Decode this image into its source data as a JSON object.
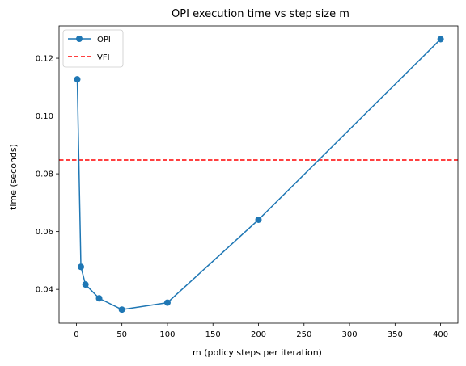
{
  "chart_data": {
    "type": "line",
    "title": "OPI execution time vs step size m",
    "xlabel": "m (policy steps per iteration)",
    "ylabel": "time (seconds)",
    "xlim": [
      -19,
      419
    ],
    "ylim": [
      0.0283,
      0.1312
    ],
    "xticks": [
      0,
      50,
      100,
      150,
      200,
      250,
      300,
      350,
      400
    ],
    "yticks": [
      0.04,
      0.06,
      0.08,
      0.1,
      0.12
    ],
    "ytick_labels": [
      "0.04",
      "0.06",
      "0.08",
      "0.10",
      "0.12"
    ],
    "grid": false,
    "legend_position": "upper-left",
    "series": [
      {
        "name": "OPI",
        "style": "line-with-circle-markers",
        "color": "#1f77b4",
        "x": [
          1,
          5,
          10,
          25,
          50,
          100,
          200,
          400
        ],
        "y": [
          0.1127,
          0.0478,
          0.0417,
          0.0369,
          0.033,
          0.0354,
          0.0641,
          0.1266
        ]
      },
      {
        "name": "VFI",
        "style": "dashed-horizontal-line",
        "color": "#ff0000",
        "value": 0.0848
      }
    ]
  }
}
